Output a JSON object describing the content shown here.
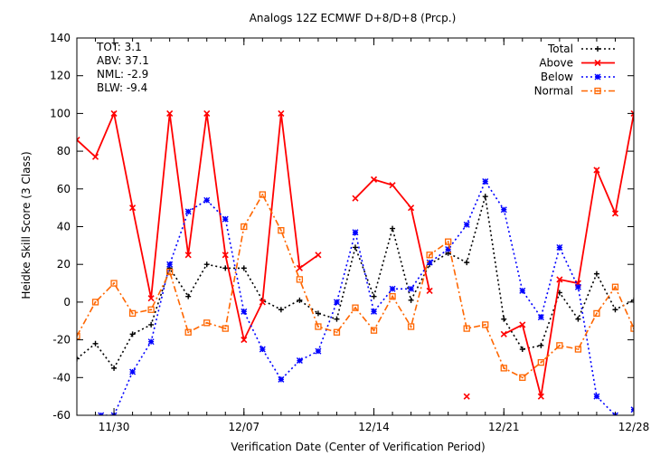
{
  "chart_data": {
    "type": "line",
    "title": "Analogs 12Z ECMWF D+8/D+8 (Prcp.)",
    "xlabel": "Verification Date (Center of Verification Period)",
    "ylabel": "Heidke Skill Score (3 Class)",
    "ylim": [
      -60,
      140
    ],
    "yticks": [
      -60,
      -40,
      -20,
      0,
      20,
      40,
      60,
      80,
      100,
      120,
      140
    ],
    "x_range_days": [
      0,
      30
    ],
    "xtick_labels": [
      {
        "day": 2,
        "label": "11/30"
      },
      {
        "day": 9,
        "label": "12/07"
      },
      {
        "day": 16,
        "label": "12/14"
      },
      {
        "day": 23,
        "label": "12/21"
      },
      {
        "day": 30,
        "label": "12/28"
      }
    ],
    "grid": false,
    "legend_position": "top-right",
    "stats": [
      {
        "label": "TOT:",
        "value": "3.1"
      },
      {
        "label": "ABV:",
        "value": "37.1"
      },
      {
        "label": "NML:",
        "value": "-2.9"
      },
      {
        "label": "BLW:",
        "value": "-9.4"
      }
    ],
    "series": [
      {
        "name": "Total",
        "color": "#000000",
        "marker": "plus",
        "dash": "2,3",
        "width": 1.6,
        "points": [
          [
            0,
            -30
          ],
          [
            1,
            -22
          ],
          [
            2,
            -35
          ],
          [
            3,
            -17
          ],
          [
            4,
            -12
          ],
          [
            5,
            18
          ],
          [
            6,
            3
          ],
          [
            7,
            20
          ],
          [
            8,
            18
          ],
          [
            9,
            18
          ],
          [
            10,
            1
          ],
          [
            11,
            -4
          ],
          [
            12,
            1
          ],
          [
            13,
            -6
          ],
          [
            14,
            -9
          ],
          [
            15,
            29
          ],
          [
            16,
            3
          ],
          [
            17,
            39
          ],
          [
            18,
            1
          ],
          [
            19,
            20
          ],
          [
            20,
            26
          ],
          [
            21,
            21
          ],
          [
            22,
            56
          ],
          [
            23,
            -9
          ],
          [
            24,
            -25
          ],
          [
            25,
            -23
          ],
          [
            26,
            5
          ],
          [
            27,
            -9
          ],
          [
            28,
            15
          ],
          [
            29,
            -4
          ],
          [
            30,
            1
          ]
        ]
      },
      {
        "name": "Above",
        "color": "#ff0000",
        "marker": "x",
        "dash": "",
        "width": 1.8,
        "points": [
          [
            0,
            86
          ],
          [
            1,
            77
          ],
          [
            2,
            100
          ],
          [
            3,
            50
          ],
          [
            4,
            2
          ],
          [
            5,
            100
          ],
          [
            6,
            25
          ],
          [
            7,
            100
          ],
          [
            8,
            25
          ],
          [
            9,
            -20
          ],
          [
            10,
            0
          ],
          [
            11,
            100
          ],
          [
            12,
            18
          ],
          [
            13,
            25
          ],
          null,
          [
            15,
            55
          ],
          [
            16,
            65
          ],
          [
            17,
            62
          ],
          [
            18,
            50
          ],
          [
            19,
            6
          ],
          null,
          [
            21,
            -50
          ],
          null,
          [
            23,
            -17
          ],
          [
            24,
            -12
          ],
          [
            25,
            -50
          ],
          [
            26,
            12
          ],
          [
            27,
            10
          ],
          [
            28,
            70
          ],
          [
            29,
            47
          ],
          [
            30,
            100
          ]
        ]
      },
      {
        "name": "Below",
        "color": "#0000ff",
        "marker": "star",
        "dash": "2,3",
        "width": 1.6,
        "points": [
          [
            1.3,
            -60
          ],
          [
            2,
            -60
          ],
          [
            3,
            -37
          ],
          [
            4,
            -21
          ],
          [
            5,
            20
          ],
          [
            6,
            48
          ],
          [
            7,
            54
          ],
          [
            8,
            44
          ],
          [
            9,
            -5
          ],
          [
            10,
            -25
          ],
          [
            11,
            -41
          ],
          [
            12,
            -31
          ],
          [
            13,
            -26
          ],
          [
            14,
            0
          ],
          [
            15,
            37
          ],
          [
            16,
            -5
          ],
          [
            17,
            7
          ],
          [
            18,
            7
          ],
          [
            19,
            21
          ],
          [
            20,
            28
          ],
          [
            21,
            41
          ],
          [
            22,
            64
          ],
          [
            23,
            49
          ],
          [
            24,
            6
          ],
          [
            25,
            -8
          ],
          [
            26,
            29
          ],
          [
            27,
            8
          ],
          [
            28,
            -50
          ],
          [
            29,
            -60
          ],
          null,
          [
            30,
            -57
          ]
        ]
      },
      {
        "name": "Normal",
        "color": "#ff6600",
        "marker": "square",
        "dash": "7,3,2,3",
        "width": 1.6,
        "points": [
          [
            0,
            -18
          ],
          [
            1,
            0
          ],
          [
            2,
            10
          ],
          [
            3,
            -6
          ],
          [
            4,
            -4
          ],
          [
            5,
            16
          ],
          [
            6,
            -16
          ],
          [
            7,
            -11
          ],
          [
            8,
            -14
          ],
          [
            9,
            40
          ],
          [
            10,
            57
          ],
          [
            11,
            38
          ],
          [
            12,
            12
          ],
          [
            13,
            -13
          ],
          [
            14,
            -16
          ],
          [
            15,
            -3
          ],
          [
            16,
            -15
          ],
          [
            17,
            3
          ],
          [
            18,
            -13
          ],
          [
            19,
            25
          ],
          [
            20,
            32
          ],
          [
            21,
            -14
          ],
          [
            22,
            -12
          ],
          [
            23,
            -35
          ],
          [
            24,
            -40
          ],
          [
            25,
            -32
          ],
          [
            26,
            -23
          ],
          [
            27,
            -25
          ],
          [
            28,
            -6
          ],
          [
            29,
            8
          ],
          [
            30,
            -14
          ]
        ]
      }
    ]
  }
}
